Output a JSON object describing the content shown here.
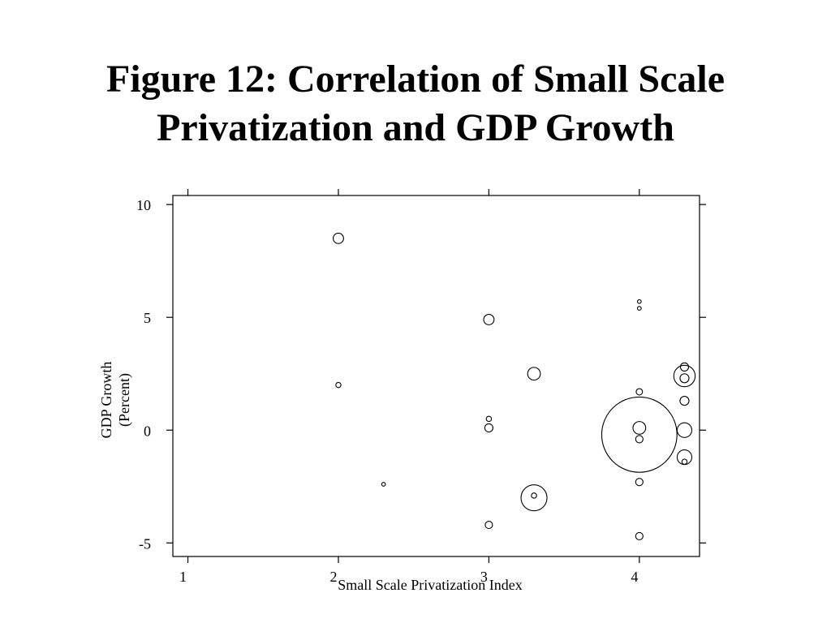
{
  "title": {
    "line1": "Figure 12: Correlation of Small Scale",
    "line2": "Privatization and GDP Growth"
  },
  "chart_data": {
    "type": "scatter",
    "title": "Figure 12: Correlation of Small Scale Privatization and GDP Growth",
    "xlabel": "Small Scale Privatization Index",
    "ylabel_lines": [
      "GDP Growth",
      "(Percent)"
    ],
    "xlim": [
      0.9,
      4.4
    ],
    "ylim": [
      -5.6,
      10.4
    ],
    "x_ticks": [
      1,
      2,
      3,
      4
    ],
    "y_ticks": [
      -5,
      0,
      5,
      10
    ],
    "grid": false,
    "marker": "hollow circle sized by weight",
    "points": [
      {
        "x": 2.0,
        "y": 8.5,
        "size": 4
      },
      {
        "x": 2.0,
        "y": 2.0,
        "size": 1
      },
      {
        "x": 2.3,
        "y": -2.4,
        "size": 0.4
      },
      {
        "x": 3.0,
        "y": 4.9,
        "size": 4
      },
      {
        "x": 3.0,
        "y": 0.5,
        "size": 1
      },
      {
        "x": 3.0,
        "y": 0.1,
        "size": 2.5
      },
      {
        "x": 3.0,
        "y": -4.2,
        "size": 2
      },
      {
        "x": 3.3,
        "y": 2.5,
        "size": 6
      },
      {
        "x": 3.3,
        "y": -3.0,
        "size": 25
      },
      {
        "x": 3.3,
        "y": -2.9,
        "size": 1
      },
      {
        "x": 4.0,
        "y": 5.7,
        "size": 0.5
      },
      {
        "x": 4.0,
        "y": 5.4,
        "size": 0.5
      },
      {
        "x": 4.0,
        "y": 1.7,
        "size": 1.5
      },
      {
        "x": 4.0,
        "y": 0.1,
        "size": 6
      },
      {
        "x": 4.0,
        "y": -0.2,
        "size": 210
      },
      {
        "x": 4.0,
        "y": -0.4,
        "size": 2
      },
      {
        "x": 4.0,
        "y": -2.3,
        "size": 2
      },
      {
        "x": 4.0,
        "y": -4.7,
        "size": 2
      },
      {
        "x": 4.3,
        "y": 2.8,
        "size": 2.5
      },
      {
        "x": 4.3,
        "y": 2.4,
        "size": 17
      },
      {
        "x": 4.3,
        "y": 2.3,
        "size": 3
      },
      {
        "x": 4.3,
        "y": 1.3,
        "size": 3
      },
      {
        "x": 4.3,
        "y": 0.0,
        "size": 8
      },
      {
        "x": 4.3,
        "y": -1.2,
        "size": 8
      },
      {
        "x": 4.3,
        "y": -1.4,
        "size": 1
      }
    ]
  }
}
